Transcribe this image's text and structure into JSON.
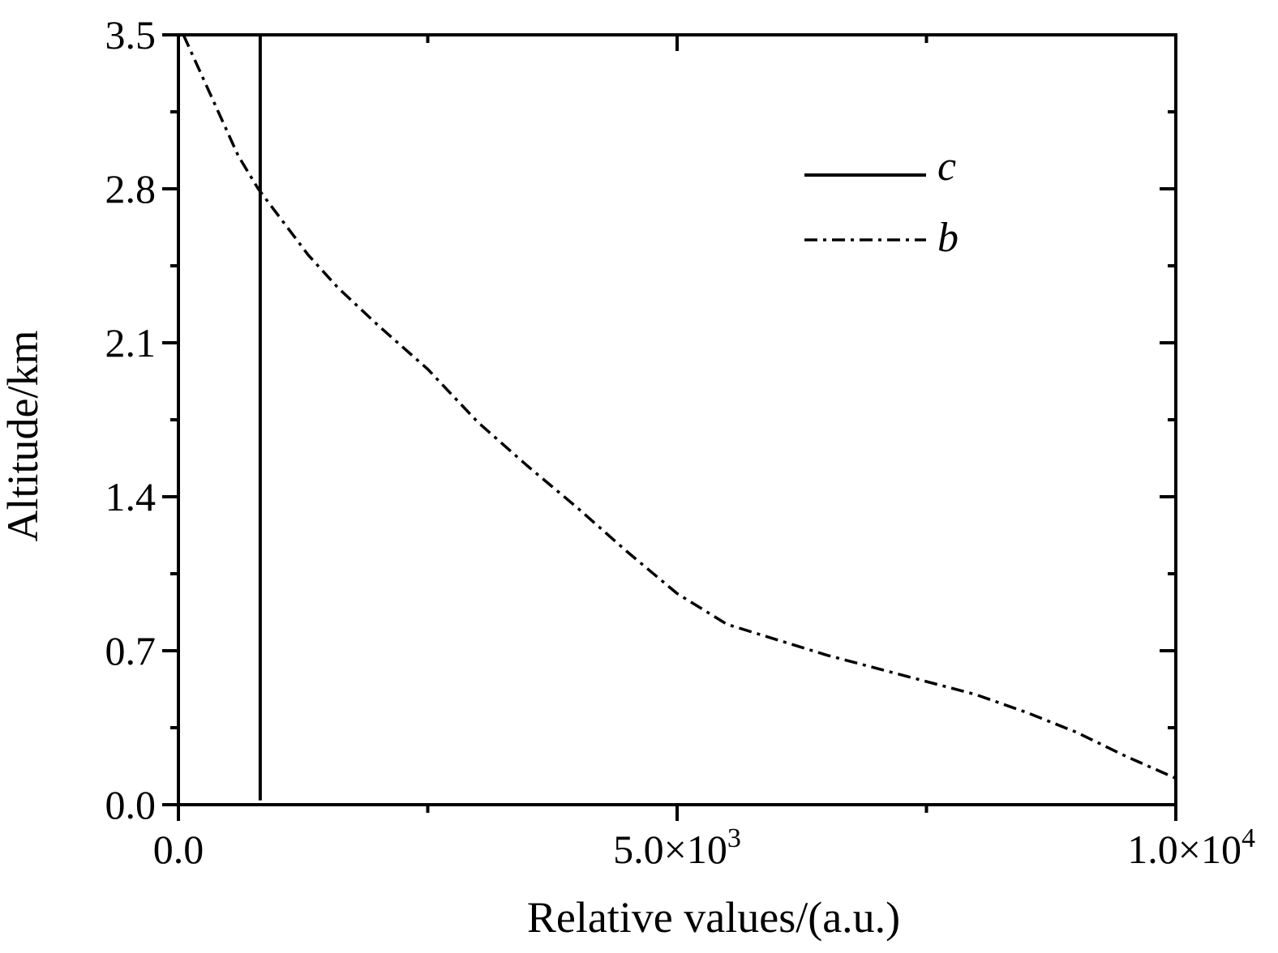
{
  "chart_data": {
    "type": "line",
    "xlabel": "Relative values/(a.u.)",
    "ylabel": "Altitude/km",
    "xlim": [
      0,
      10000
    ],
    "ylim": [
      0,
      3.5
    ],
    "x_ticks": [
      {
        "value": 0,
        "base": "0.0",
        "exp": ""
      },
      {
        "value": 5000,
        "base": "5.0×10",
        "exp": "3"
      },
      {
        "value": 10000,
        "base": "1.0×10",
        "exp": "4"
      }
    ],
    "x_minor_ticks": [
      2500,
      7500
    ],
    "y_ticks": [
      {
        "value": 0.0,
        "label": "0.0"
      },
      {
        "value": 0.7,
        "label": "0.7"
      },
      {
        "value": 1.4,
        "label": "1.4"
      },
      {
        "value": 2.1,
        "label": "2.1"
      },
      {
        "value": 2.8,
        "label": "2.8"
      },
      {
        "value": 3.5,
        "label": "3.5"
      }
    ],
    "y_minor_ticks": [
      0.35,
      1.05,
      1.75,
      2.45,
      3.15
    ],
    "grid": false,
    "legend_position": "top-right",
    "series": [
      {
        "name": "c",
        "style": "solid",
        "color": "#000000",
        "points": [
          [
            820,
            0.02
          ],
          [
            820,
            3.5
          ]
        ]
      },
      {
        "name": "b",
        "style": "dash-dot",
        "color": "#000000",
        "points": [
          [
            50,
            3.5
          ],
          [
            200,
            3.35
          ],
          [
            400,
            3.15
          ],
          [
            600,
            2.95
          ],
          [
            800,
            2.8
          ],
          [
            1000,
            2.68
          ],
          [
            1300,
            2.5
          ],
          [
            1600,
            2.35
          ],
          [
            2000,
            2.18
          ],
          [
            2500,
            1.98
          ],
          [
            3000,
            1.74
          ],
          [
            3500,
            1.54
          ],
          [
            4000,
            1.35
          ],
          [
            4500,
            1.15
          ],
          [
            5000,
            0.96
          ],
          [
            5500,
            0.82
          ],
          [
            6000,
            0.75
          ],
          [
            6500,
            0.68
          ],
          [
            7000,
            0.62
          ],
          [
            7500,
            0.56
          ],
          [
            8000,
            0.5
          ],
          [
            8500,
            0.42
          ],
          [
            9000,
            0.33
          ],
          [
            9500,
            0.22
          ],
          [
            10000,
            0.12
          ]
        ]
      }
    ]
  }
}
